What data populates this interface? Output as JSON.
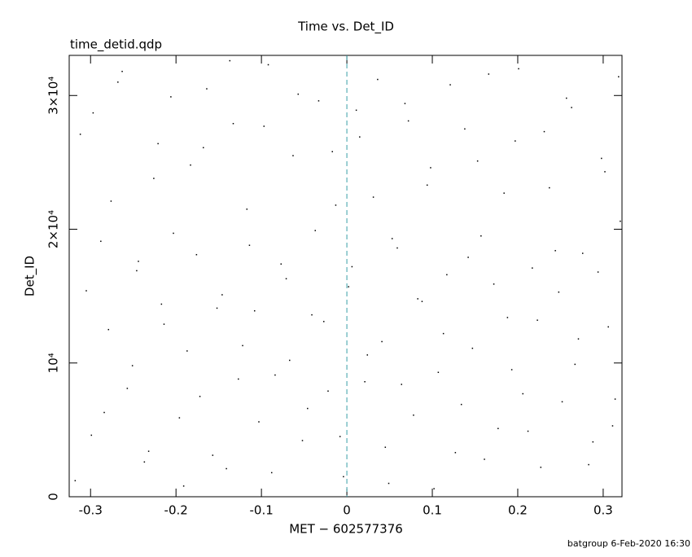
{
  "chart_data": {
    "type": "scatter",
    "title": "Time vs. Det_ID",
    "subtitle": "time_detid.qdp",
    "x_label": "MET − 602577376",
    "y_label": "Det_ID",
    "footer": "batgroup  6-Feb-2020 16:30",
    "xlim": [
      -0.325,
      0.322
    ],
    "ylim": [
      0,
      33000
    ],
    "xticks": [
      -0.3,
      -0.2,
      -0.1,
      0,
      0.1,
      0.2,
      0.3
    ],
    "yticks": [
      0,
      {
        "value": 10000,
        "label": "10⁴"
      },
      {
        "value": 20000,
        "label": "2×10⁴"
      },
      {
        "value": 30000,
        "label": "3×10⁴"
      }
    ],
    "color": "#000000",
    "reference_line": {
      "x": 0,
      "color": "#3a9fa8"
    },
    "x": [
      -0.318,
      -0.305,
      -0.297,
      -0.284,
      -0.276,
      -0.263,
      -0.251,
      -0.244,
      -0.232,
      -0.221,
      -0.214,
      -0.203,
      -0.191,
      -0.183,
      -0.172,
      -0.164,
      -0.152,
      -0.141,
      -0.133,
      -0.122,
      -0.114,
      -0.103,
      -0.092,
      -0.084,
      -0.071,
      -0.063,
      -0.052,
      -0.041,
      -0.033,
      -0.022,
      -0.013,
      -0.004,
      0.006,
      0.015,
      0.024,
      0.036,
      0.045,
      0.053,
      0.064,
      0.072,
      0.083,
      0.094,
      0.102,
      0.113,
      0.121,
      0.134,
      0.142,
      0.153,
      0.161,
      0.172,
      0.184,
      0.193,
      0.201,
      0.212,
      0.223,
      0.231,
      0.244,
      0.252,
      0.263,
      0.271,
      0.283,
      0.294,
      0.302,
      0.311,
      0.318,
      -0.312,
      -0.299,
      -0.288,
      -0.279,
      -0.268,
      -0.257,
      -0.246,
      -0.237,
      -0.226,
      -0.217,
      -0.206,
      -0.196,
      -0.187,
      -0.176,
      -0.168,
      -0.157,
      -0.146,
      -0.137,
      -0.127,
      -0.117,
      -0.108,
      -0.097,
      -0.088,
      -0.077,
      -0.067,
      -0.057,
      -0.046,
      -0.037,
      -0.027,
      -0.017,
      -0.008,
      0.002,
      0.011,
      0.021,
      0.031,
      0.041,
      0.049,
      0.059,
      0.068,
      0.078,
      0.088,
      0.098,
      0.107,
      0.117,
      0.127,
      0.138,
      0.147,
      0.157,
      0.166,
      0.177,
      0.188,
      0.197,
      0.206,
      0.217,
      0.227,
      0.237,
      0.248,
      0.257,
      0.267,
      0.276,
      0.288,
      0.298,
      0.306,
      0.314,
      0.32
    ],
    "values": [
      1200,
      15400,
      28700,
      6300,
      22100,
      31800,
      9800,
      17600,
      3400,
      26400,
      12900,
      19700,
      800,
      24800,
      7500,
      30500,
      14100,
      2100,
      27900,
      11300,
      18800,
      5600,
      32300,
      9100,
      16300,
      25500,
      4200,
      13600,
      29600,
      7900,
      21800,
      1500,
      17200,
      26900,
      10600,
      31200,
      3700,
      19300,
      8400,
      28100,
      14800,
      23300,
      600,
      12200,
      30800,
      6900,
      17900,
      25100,
      2800,
      15900,
      22700,
      9500,
      32000,
      4900,
      13200,
      27300,
      18400,
      7100,
      29100,
      11800,
      2400,
      16800,
      24300,
      5300,
      31400,
      27100,
      4600,
      19100,
      12500,
      31000,
      8100,
      16900,
      2600,
      23800,
      14400,
      29900,
      5900,
      10900,
      18100,
      26100,
      3100,
      15100,
      32600,
      8800,
      21500,
      13900,
      27700,
      1800,
      17400,
      10200,
      30100,
      6600,
      19900,
      13100,
      25800,
      4500,
      15700,
      28900,
      8600,
      22400,
      11600,
      1000,
      18600,
      29400,
      6100,
      14600,
      24600,
      9300,
      16600,
      3300,
      27500,
      11100,
      19500,
      31600,
      5100,
      13400,
      26600,
      7700,
      17100,
      2200,
      23100,
      15300,
      29800,
      9900,
      18200,
      4100,
      25300,
      12700,
      7300,
      20600
    ]
  }
}
